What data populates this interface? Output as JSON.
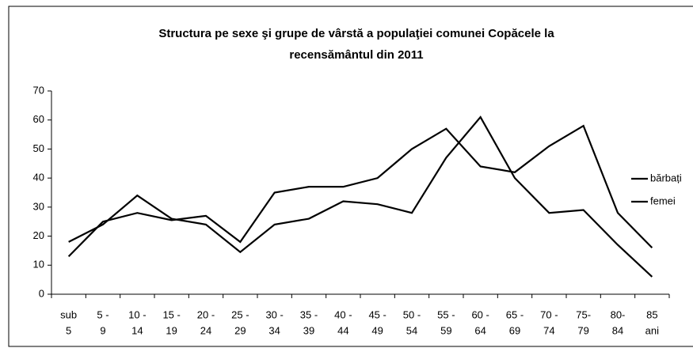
{
  "chart_data": {
    "type": "line",
    "title": [
      "Structura pe sexe şi grupe de vârstă a populaţiei comunei Copăcele la",
      "recensământul din 2011"
    ],
    "categories": [
      [
        "sub",
        "5"
      ],
      [
        "5 -",
        "9"
      ],
      [
        "10 -",
        "14"
      ],
      [
        "15 -",
        "19"
      ],
      [
        "20 -",
        "24"
      ],
      [
        "25 -",
        "29"
      ],
      [
        "30 -",
        "34"
      ],
      [
        "35 -",
        "39"
      ],
      [
        "40 -",
        "44"
      ],
      [
        "45 -",
        "49"
      ],
      [
        "50 -",
        "54"
      ],
      [
        "55 -",
        "59"
      ],
      [
        "60 -",
        "64"
      ],
      [
        "65 -",
        "69"
      ],
      [
        "70 -",
        "74"
      ],
      [
        "75-",
        "79"
      ],
      [
        "80-",
        "84"
      ],
      [
        "85",
        "ani"
      ]
    ],
    "series": [
      {
        "name": "bărbați",
        "color": "#000000",
        "values": [
          18,
          24,
          34,
          26,
          24,
          14.5,
          24,
          26,
          32,
          31,
          28,
          47,
          61,
          40,
          28,
          29,
          17,
          6
        ]
      },
      {
        "name": "femei",
        "color": "#000000",
        "values": [
          13,
          25,
          28,
          25.5,
          27,
          18,
          35,
          37,
          37,
          40,
          50,
          57,
          44,
          42,
          51,
          58,
          28,
          16
        ]
      }
    ],
    "ylim": [
      0,
      70
    ],
    "yticks": [
      0,
      10,
      20,
      30,
      40,
      50,
      60,
      70
    ],
    "grid": false,
    "legend": "right"
  }
}
